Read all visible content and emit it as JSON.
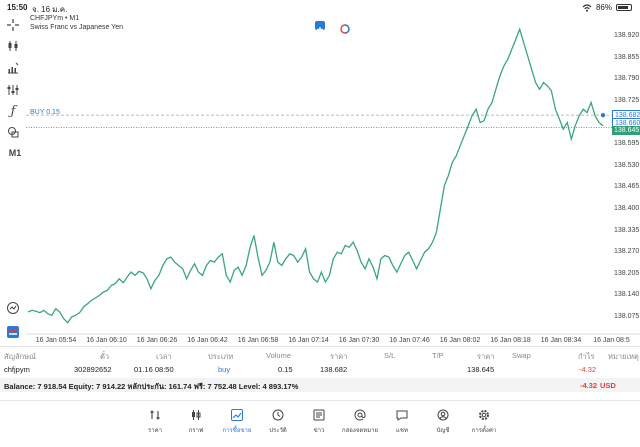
{
  "status_bar": {
    "time": "15:50",
    "date": "จ. 16 ม.ค.",
    "battery": "86%",
    "battery_level": 0.86
  },
  "chart": {
    "symbol": "CHFJPYm • M1",
    "description": "Swiss Franc vs Japanese Yen",
    "timeframe": "M1",
    "buy_label": "BUY 0.15",
    "line_color": "#3aa57f",
    "buy_line_color": "#2b7bd6",
    "price_ticks": [
      "138.920",
      "138.855",
      "138.790",
      "138.725",
      "138.595",
      "138.530",
      "138.465",
      "138.400",
      "138.335",
      "138.270",
      "138.205",
      "138.140",
      "138.075"
    ],
    "buy_price_box": "138.682",
    "buy_price_box2": "138.660",
    "bid_price_box": "138.645",
    "time_ticks": [
      "16 Jan 05:54",
      "16 Jan 06:10",
      "16 Jan 06:26",
      "16 Jan 06:42",
      "16 Jan 06:58",
      "16 Jan 07:14",
      "16 Jan 07:30",
      "16 Jan 07:46",
      "16 Jan 08:02",
      "16 Jan 08:18",
      "16 Jan 08:34",
      "16 Jan 08:5"
    ]
  },
  "chart_data": {
    "type": "line",
    "y_axis_prices": [
      138.92,
      138.075
    ],
    "buy_price": 138.682,
    "bid_price": 138.645,
    "values": [
      138.09,
      138.095,
      138.092,
      138.088,
      138.095,
      138.085,
      138.08,
      138.1,
      138.09,
      138.07,
      138.058,
      138.075,
      138.08,
      138.088,
      138.105,
      138.115,
      138.125,
      138.132,
      138.14,
      138.15,
      138.155,
      138.17,
      138.175,
      138.19,
      138.178,
      138.195,
      138.21,
      138.2,
      138.212,
      138.208,
      138.19,
      138.16,
      138.185,
      138.2,
      138.23,
      138.25,
      138.255,
      138.24,
      138.23,
      138.22,
      138.19,
      138.215,
      138.235,
      138.21,
      138.2,
      138.23,
      138.245,
      138.24,
      138.255,
      138.265,
      138.2,
      138.18,
      138.215,
      138.225,
      138.2,
      138.23,
      138.285,
      138.32,
      138.255,
      138.2,
      138.215,
      138.24,
      138.3,
      138.24,
      138.23,
      138.25,
      138.265,
      138.26,
      138.24,
      138.255,
      138.28,
      138.21,
      138.19,
      138.18,
      138.21,
      138.18,
      138.2,
      138.25,
      138.27,
      138.265,
      138.29,
      138.285,
      138.3,
      138.275,
      138.24,
      138.22,
      138.25,
      138.225,
      138.19,
      138.25,
      138.26,
      138.255,
      138.23,
      138.21,
      138.235,
      138.26,
      138.27,
      138.245,
      138.22,
      138.245,
      138.27,
      138.28,
      138.3,
      138.33,
      138.4,
      138.47,
      138.5,
      138.54,
      138.56,
      138.59,
      138.62,
      138.65,
      138.68,
      138.7,
      138.66,
      138.665,
      138.7,
      138.72,
      138.76,
      138.8,
      138.83,
      138.85,
      138.88,
      138.91,
      138.94,
      138.9,
      138.86,
      138.82,
      138.78,
      138.76,
      138.78,
      138.77,
      138.755,
      138.7,
      138.67,
      138.64,
      138.66,
      138.61,
      138.65,
      138.68,
      138.7,
      138.69,
      138.72,
      138.68,
      138.66,
      138.65
    ]
  },
  "trade_table": {
    "headers": {
      "symbol": "สัญลักษณ์",
      "ticket": "ตั๋ว",
      "time": "เวลา",
      "type": "ประเภท",
      "volume": "Volume",
      "price": "ราคา",
      "sl": "S/L",
      "tp": "T/P",
      "current_price": "ราคา",
      "swap": "Swap",
      "profit": "กำไร",
      "comment": "หมายเหตุ"
    },
    "row": {
      "symbol": "chfjpym",
      "ticket": "302892652",
      "time": "01.16 08:50",
      "type": "buy",
      "volume": "0.15",
      "price": "138.682",
      "current_price": "138.645",
      "profit": "-4.32"
    },
    "balance_text": "Balance: 7 918.54 Equity: 7 914.22 หลักประกัน: 161.74 ฟรี: 7 752.48 Level: 4 893.17%",
    "balance_profit": "-4.32",
    "currency": "USD",
    "loss_color": "#e0403a"
  },
  "tabs": [
    {
      "id": "quotes",
      "label": "ราคา",
      "icon": "arrows-updown-icon"
    },
    {
      "id": "chart",
      "label": "กราฟ",
      "icon": "candles-icon"
    },
    {
      "id": "trade",
      "label": "การซื้อขาย",
      "icon": "trend-line-icon",
      "active": true
    },
    {
      "id": "history",
      "label": "ประวัติ",
      "icon": "history-icon"
    },
    {
      "id": "news",
      "label": "ข่าว",
      "icon": "news-icon"
    },
    {
      "id": "mailbox",
      "label": "กล่องจดหมาย",
      "icon": "at-icon"
    },
    {
      "id": "chat",
      "label": "แชท",
      "icon": "chat-icon"
    },
    {
      "id": "accounts",
      "label": "บัญชี",
      "icon": "account-icon"
    },
    {
      "id": "settings",
      "label": "การตั้งค่า",
      "icon": "gear-icon"
    }
  ]
}
